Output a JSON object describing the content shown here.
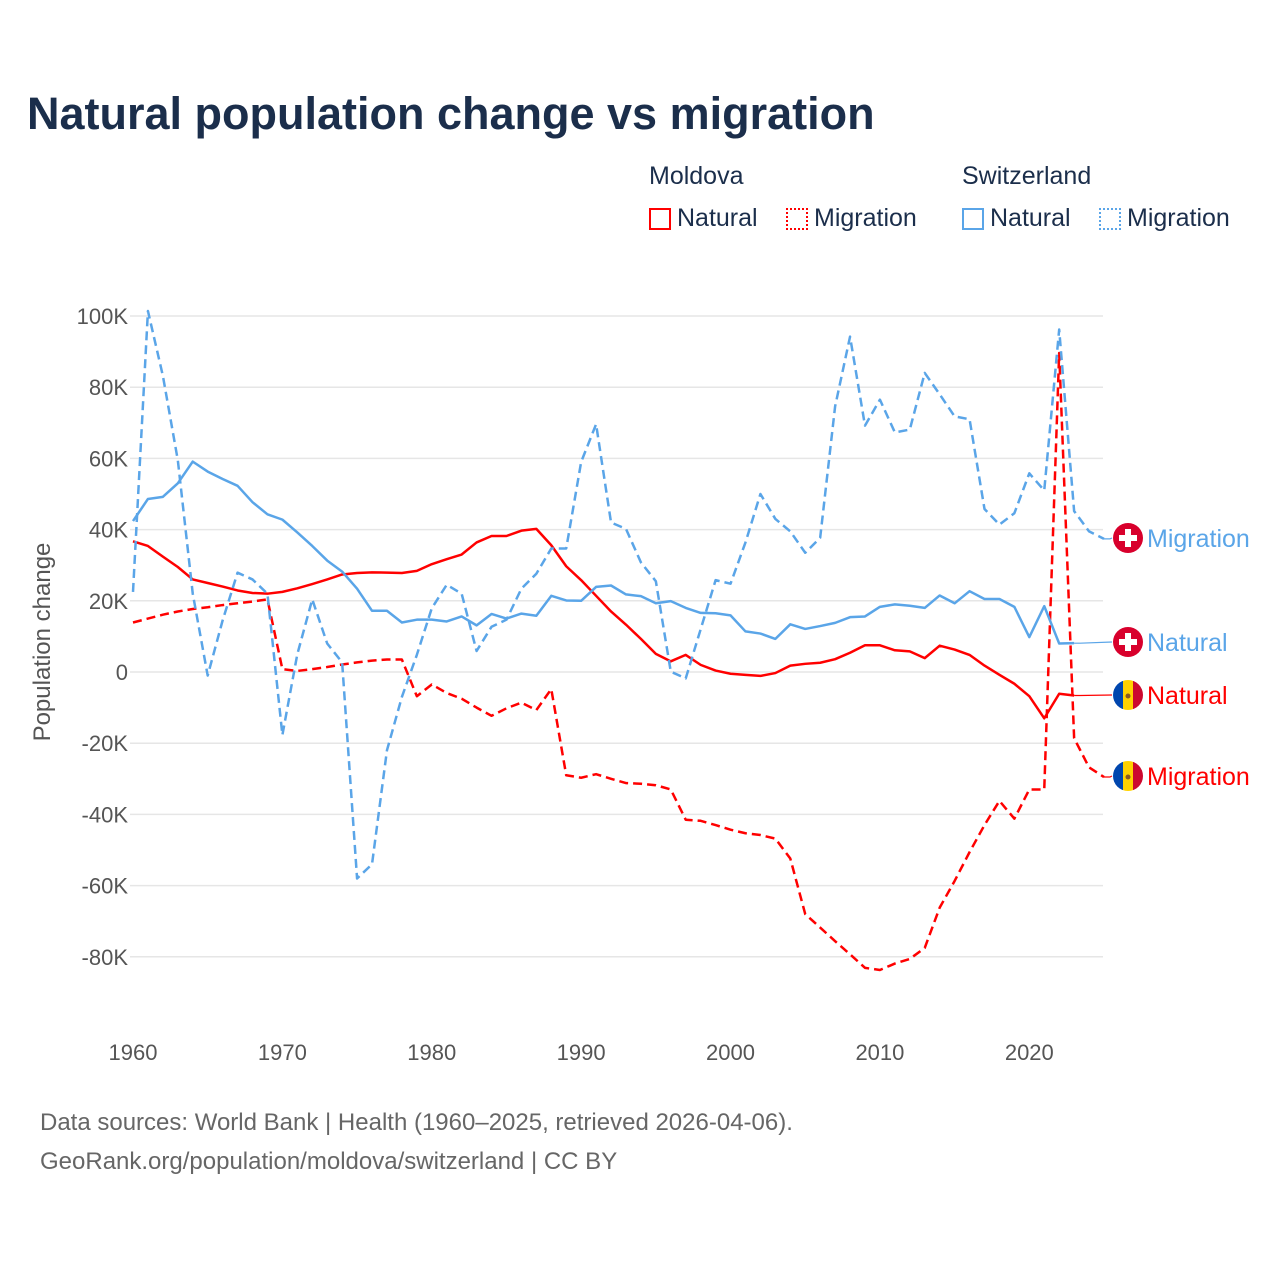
{
  "title": "Natural population change vs migration",
  "legend": {
    "groups": [
      {
        "country": "Moldova",
        "items": [
          {
            "label": "Natural",
            "color": "#ff0000",
            "style": "solid"
          },
          {
            "label": "Migration",
            "color": "#ff0000",
            "style": "dotted"
          }
        ]
      },
      {
        "country": "Switzerland",
        "items": [
          {
            "label": "Natural",
            "color": "#5aa5e8",
            "style": "solid"
          },
          {
            "label": "Migration",
            "color": "#5aa5e8",
            "style": "dotted"
          }
        ]
      }
    ]
  },
  "footer": {
    "line1": "Data sources: World Bank | Health (1960–2025, retrieved 2026-04-06).",
    "line2": "GeoRank.org/population/moldova/switzerland | CC BY"
  },
  "chart_data": {
    "type": "line",
    "title": "Natural population change vs migration",
    "xlabel": "",
    "ylabel": "Population change",
    "xlim": [
      1960,
      2025
    ],
    "ylim": [
      -80000,
      100000
    ],
    "grid": true,
    "legend_placement": "top-right",
    "x_ticks": [
      1960,
      1970,
      1980,
      1990,
      2000,
      2010,
      2020
    ],
    "x_tick_labels": [
      "1960",
      "1970",
      "1980",
      "1990",
      "2000",
      "2010",
      "2020"
    ],
    "y_ticks": [
      100000,
      80000,
      60000,
      40000,
      20000,
      0,
      -20000,
      -40000,
      -60000,
      -80000
    ],
    "y_tick_labels": [
      "100K",
      "80K",
      "60K",
      "40K",
      "20K",
      "0",
      "-20K",
      "-40K",
      "-60K",
      "-80K"
    ],
    "series": [
      {
        "name": "Moldova Natural",
        "end_label": "Natural",
        "color": "#ff0000",
        "dash": false,
        "flag": "moldova-flag",
        "start_year": 1960,
        "values": [
          36700,
          35400,
          32400,
          29500,
          26000,
          25000,
          24000,
          22900,
          22200,
          22000,
          22500,
          23500,
          24700,
          26000,
          27400,
          27800,
          28000,
          27900,
          27800,
          28400,
          30300,
          31700,
          33000,
          36400,
          38200,
          38200,
          39700,
          40200,
          35600,
          29700,
          25800,
          21400,
          17000,
          13300,
          9300,
          5100,
          3000,
          4800,
          2000,
          400,
          -500,
          -800,
          -1100,
          -300,
          1800,
          2300,
          2600,
          3600,
          5400,
          7500,
          7500,
          6100,
          5800,
          3900,
          7400,
          6300,
          4800,
          1800,
          -800,
          -3300,
          -6800,
          -13000,
          -6100,
          -6600
        ]
      },
      {
        "name": "Moldova Migration",
        "end_label": "Migration",
        "color": "#ff0000",
        "dash": true,
        "flag": "moldova-flag",
        "start_year": 1960,
        "values": [
          13900,
          15000,
          16100,
          17000,
          17700,
          18200,
          18800,
          19300,
          19800,
          20400,
          800,
          300,
          800,
          1400,
          2100,
          2700,
          3200,
          3500,
          3500,
          -6800,
          -3500,
          -5900,
          -7500,
          -10000,
          -12300,
          -10200,
          -8600,
          -10700,
          -4800,
          -29000,
          -29700,
          -28700,
          -30000,
          -31200,
          -31400,
          -31800,
          -33000,
          -41500,
          -41800,
          -43000,
          -44300,
          -45300,
          -45800,
          -46800,
          -52400,
          -68000,
          -71800,
          -75600,
          -79300,
          -83100,
          -83700,
          -81900,
          -80600,
          -77500,
          -66200,
          -58700,
          -50600,
          -43000,
          -36200,
          -41200,
          -33000,
          -33000,
          89600,
          -18600,
          -26800,
          -29500
        ]
      },
      {
        "name": "Switzerland Natural",
        "end_label": "Natural",
        "color": "#5aa5e8",
        "dash": false,
        "flag": "switzerland-flag",
        "start_year": 1960,
        "values": [
          42400,
          48600,
          49200,
          53000,
          59100,
          56300,
          54200,
          52300,
          47700,
          44300,
          42800,
          39200,
          35400,
          31300,
          28200,
          23400,
          17200,
          17200,
          13900,
          14700,
          14700,
          14200,
          15600,
          13100,
          16300,
          15000,
          16400,
          15800,
          21400,
          20100,
          20000,
          23900,
          24300,
          21800,
          21300,
          19300,
          19900,
          18000,
          16600,
          16500,
          15900,
          11400,
          10800,
          9300,
          13400,
          12100,
          12900,
          13800,
          15400,
          15600,
          18300,
          19000,
          18600,
          18000,
          21500,
          19300,
          22700,
          20500,
          20500,
          18300,
          9800,
          18500,
          8000,
          8100
        ]
      },
      {
        "name": "Switzerland Migration",
        "end_label": "Migration",
        "color": "#5aa5e8",
        "dash": true,
        "flag": "switzerland-flag",
        "start_year": 1960,
        "values": [
          22500,
          101400,
          83200,
          59500,
          22000,
          -1000,
          14500,
          27900,
          26000,
          22000,
          -17700,
          5000,
          20400,
          8000,
          2700,
          -58000,
          -54000,
          -22000,
          -7000,
          4800,
          17900,
          24500,
          22000,
          5900,
          12700,
          14700,
          23400,
          27600,
          34700,
          34700,
          59000,
          69600,
          42000,
          40200,
          30800,
          25500,
          100,
          -1800,
          12000,
          25800,
          24800,
          36400,
          50000,
          43000,
          39500,
          33500,
          37700,
          74600,
          94200,
          69200,
          76500,
          67300,
          68100,
          84000,
          78000,
          71800,
          71000,
          45800,
          41400,
          44600,
          55800,
          51000,
          96200,
          45200,
          39500,
          37400
        ]
      }
    ]
  }
}
